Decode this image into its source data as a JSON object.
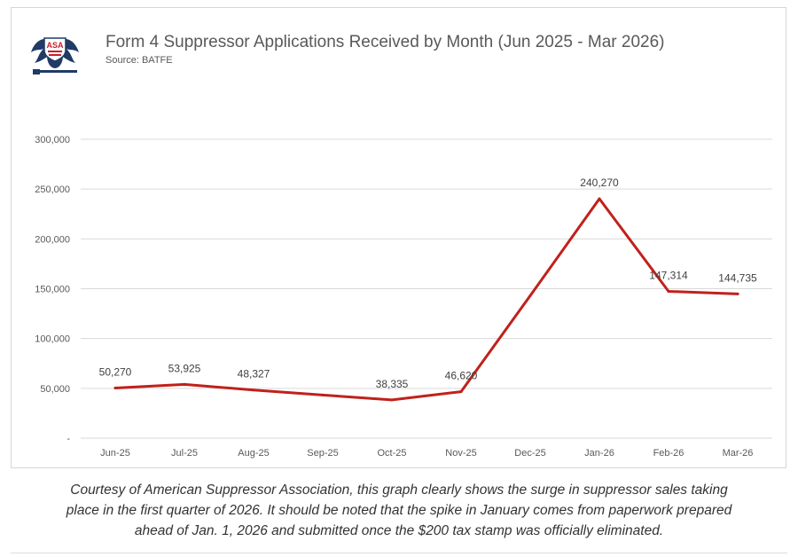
{
  "colors": {
    "line": "#c0211b",
    "grid": "#d9d9d9",
    "axis_text": "#595959",
    "label_text": "#404040",
    "logo_navy": "#1f3b66",
    "logo_red": "#c8202a"
  },
  "logo": {
    "text": "ASA"
  },
  "chart_data": {
    "type": "line",
    "title": "Form 4 Suppressor Applications Received by Month (Jun 2025 - Mar 2026)",
    "subtitle": "Source: BATFE",
    "categories": [
      "Jun-25",
      "Jul-25",
      "Aug-25",
      "Sep-25",
      "Oct-25",
      "Nov-25",
      "Dec-25",
      "Jan-26",
      "Feb-26",
      "Mar-26"
    ],
    "values": [
      50270,
      53925,
      48327,
      43300,
      38335,
      46620,
      143000,
      240270,
      147314,
      144735
    ],
    "data_labels": [
      "50,270",
      "53,925",
      "48,327",
      "",
      "38,335",
      "46,620",
      "",
      "240,270",
      "147,314",
      "144,735"
    ],
    "y_ticks": [
      {
        "value": 0,
        "label": "-"
      },
      {
        "value": 50000,
        "label": "50,000"
      },
      {
        "value": 100000,
        "label": "100,000"
      },
      {
        "value": 150000,
        "label": "150,000"
      },
      {
        "value": 200000,
        "label": "200,000"
      },
      {
        "value": 250000,
        "label": "250,000"
      },
      {
        "value": 300000,
        "label": "300,000"
      }
    ],
    "ylim": [
      0,
      300000
    ],
    "grid": true,
    "legend": "none"
  },
  "caption": {
    "line1": "Courtesy of American Suppressor Association, this graph clearly shows the surge in suppressor sales taking",
    "line2": "place in the first quarter of 2026. It should be noted that the spike in January comes from paperwork prepared",
    "line3": "ahead of Jan. 1, 2026 and submitted once the $200 tax stamp was officially eliminated."
  }
}
